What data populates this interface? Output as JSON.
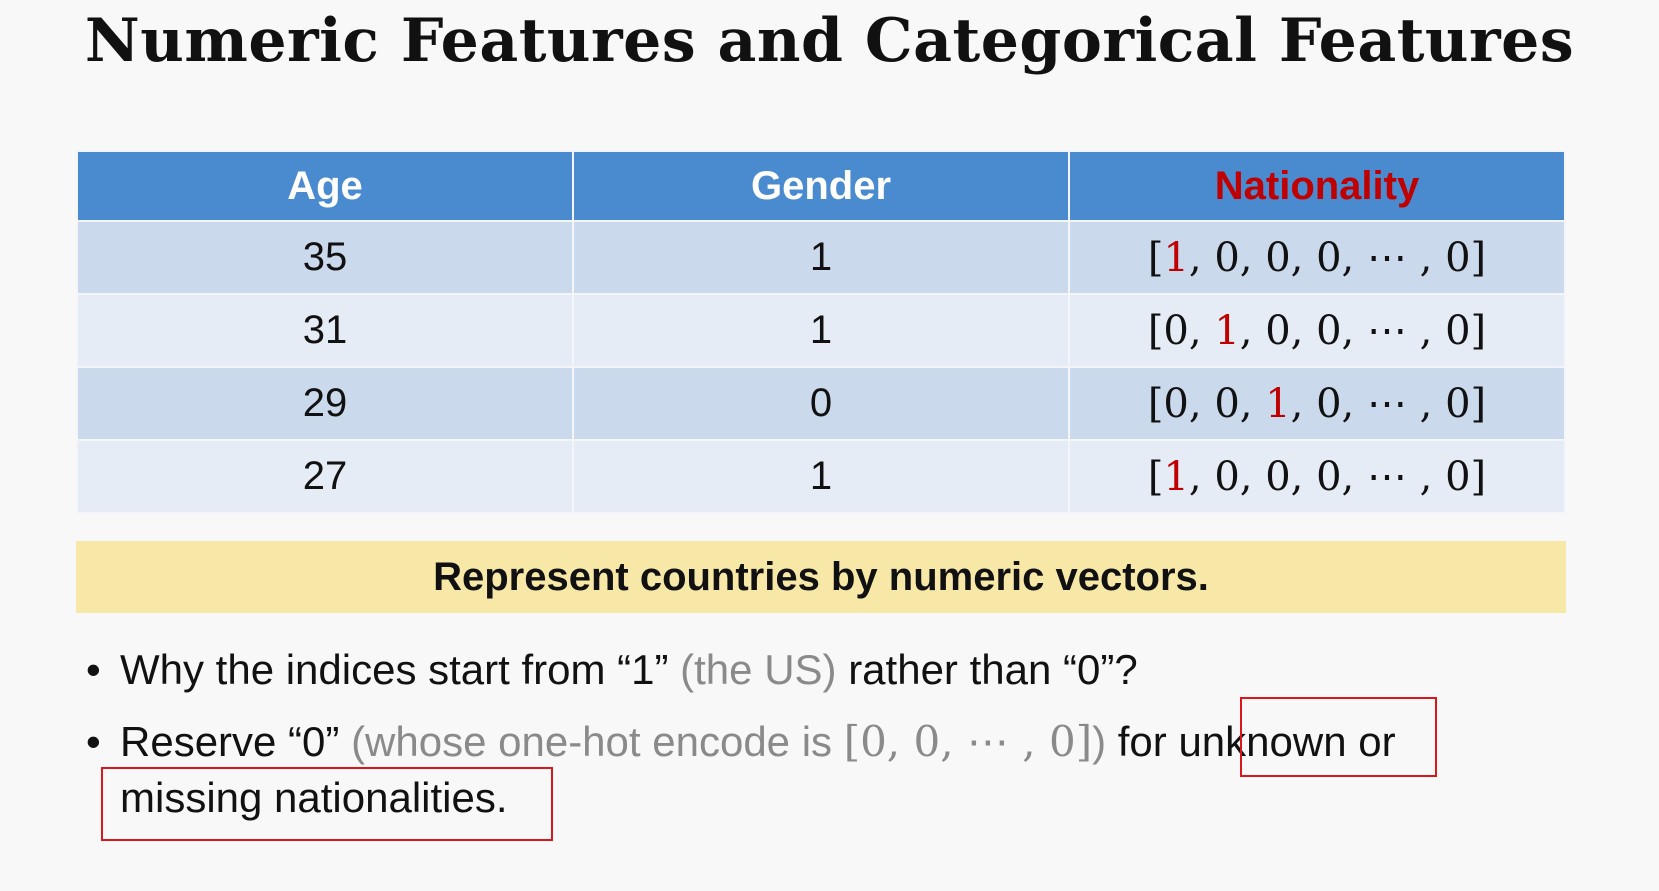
{
  "title": "Numeric Features and Categorical Features",
  "table": {
    "headers": [
      "Age",
      "Gender",
      "Nationality"
    ],
    "rows": [
      {
        "age": "35",
        "gender": "1",
        "vec_before": "[",
        "vec_hot": "1",
        "vec_after": ", 0, 0, 0, ⋯ , 0]"
      },
      {
        "age": "31",
        "gender": "1",
        "vec_before": "[0, ",
        "vec_hot": "1",
        "vec_after": ", 0, 0, ⋯ , 0]"
      },
      {
        "age": "29",
        "gender": "0",
        "vec_before": "[0, 0, ",
        "vec_hot": "1",
        "vec_after": ", 0, ⋯ , 0]"
      },
      {
        "age": "27",
        "gender": "1",
        "vec_before": "[",
        "vec_hot": "1",
        "vec_after": ", 0, 0, 0, ⋯ , 0]"
      }
    ]
  },
  "banner": "Represent countries by numeric vectors.",
  "bullets": {
    "b1": {
      "bullet": "•",
      "text_a": "Why the indices start from “1” ",
      "gray": "(the US)",
      "text_b": " rather than “0”?"
    },
    "b2": {
      "bullet": "•",
      "text_a": "Reserve “0” ",
      "gray_a": "(whose one-hot encode is ",
      "gray_math": "[0, 0, ⋯ , 0]",
      "gray_b": ")",
      "text_b": " for unknown or",
      "text_c": "missing nationalities."
    }
  },
  "colors": {
    "header_bg": "#4a8bd0",
    "highlight_red": "#c00000",
    "banner_bg": "#f8e8a8",
    "annotation_box": "#d9181e"
  }
}
